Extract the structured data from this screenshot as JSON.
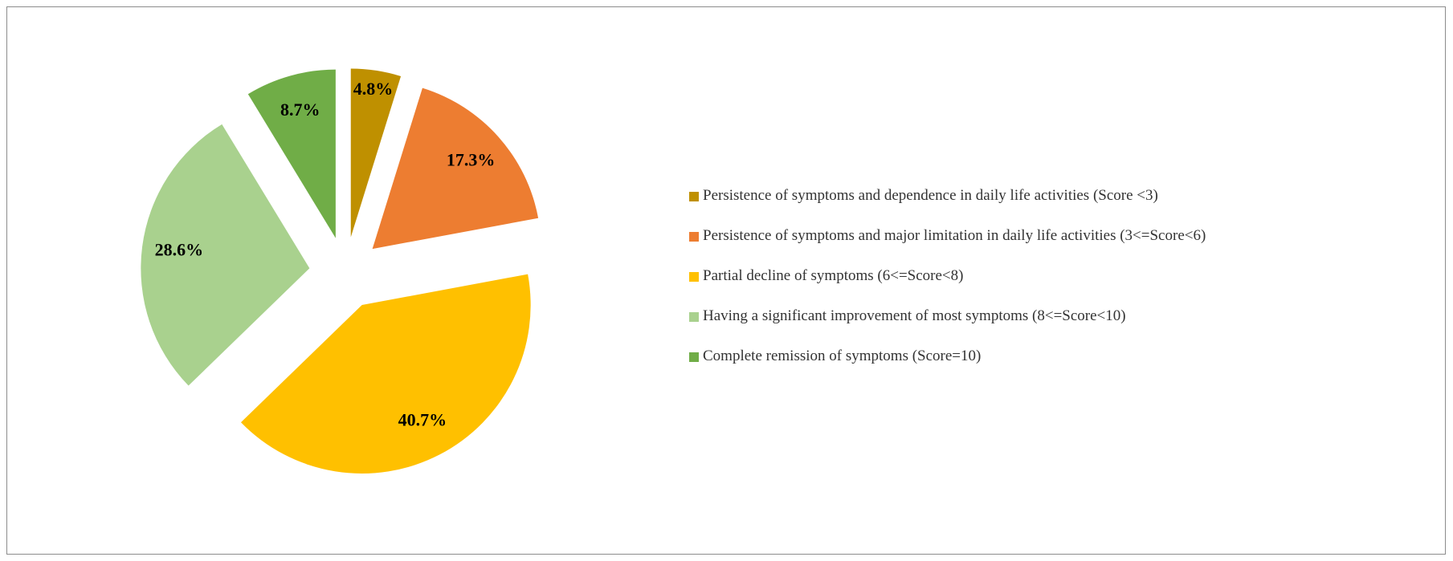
{
  "chart_data": {
    "type": "pie",
    "categories": [
      "Persistence of symptoms and dependence in daily life activities (Score <3)",
      "Persistence of symptoms and major limitation in daily life activities (3<=Score<6)",
      "Partial decline of symptoms (6<=Score<8)",
      "Having a significant improvement of most symptoms (8<=Score<10)",
      "Complete remission of symptoms (Score=10)"
    ],
    "values": [
      4.8,
      17.3,
      40.7,
      28.6,
      8.7
    ],
    "value_labels": [
      "4.8%",
      "17.3%",
      "40.7%",
      "28.6%",
      "8.7%"
    ],
    "colors": [
      "#bf9000",
      "#ed7d31",
      "#ffc000",
      "#a9d18e",
      "#70ad47"
    ],
    "legend": "right"
  }
}
